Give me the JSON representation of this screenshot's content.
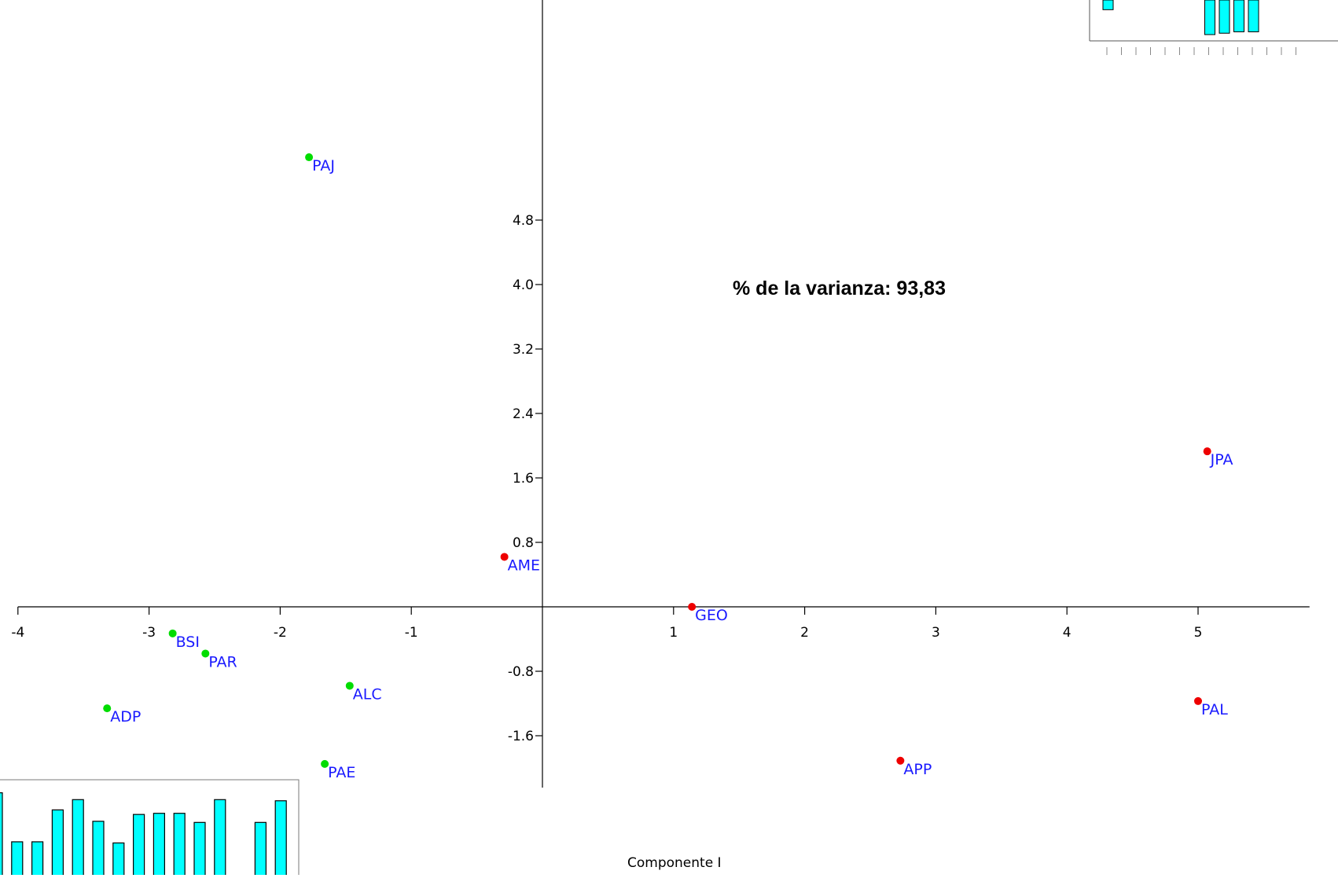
{
  "chart_data": [
    {
      "type": "scatter",
      "title": "",
      "xlabel": "Componente I",
      "ylabel": "",
      "annotation": "% de la varianza: 93,83",
      "xlim": [
        -4,
        5.85
      ],
      "ylim": [
        -2.0,
        6.0
      ],
      "x_ticks": [
        -4,
        -3,
        -2,
        -1,
        1,
        2,
        3,
        4,
        5
      ],
      "y_ticks": [
        4.8,
        4.0,
        3.2,
        2.4,
        1.6,
        0.8,
        -0.8,
        -1.6
      ],
      "grid": false,
      "colors": {
        "axis": "#000000",
        "label": "#1a1aff",
        "group_a": "#00dd00",
        "group_b": "#ee0000"
      },
      "series": [
        {
          "color": "#00dd00",
          "points": [
            {
              "label": "PAJ",
              "x": -1.78,
              "y": 5.58
            },
            {
              "label": "BSI",
              "x": -2.82,
              "y": -0.33
            },
            {
              "label": "PAR",
              "x": -2.57,
              "y": -0.58
            },
            {
              "label": "ALC",
              "x": -1.47,
              "y": -0.98
            },
            {
              "label": "ADP",
              "x": -3.32,
              "y": -1.26
            },
            {
              "label": "PAE",
              "x": -1.66,
              "y": -1.95
            }
          ]
        },
        {
          "color": "#ee0000",
          "points": [
            {
              "label": "AME",
              "x": -0.29,
              "y": 0.62
            },
            {
              "label": "GEO",
              "x": 1.14,
              "y": 0.0
            },
            {
              "label": "JPA",
              "x": 5.07,
              "y": 1.93
            },
            {
              "label": "PAL",
              "x": 5.0,
              "y": -1.17
            },
            {
              "label": "APP",
              "x": 2.73,
              "y": -1.91
            }
          ]
        }
      ]
    },
    {
      "type": "bar",
      "title": "",
      "color": "#00ffff",
      "values": [
        0.72,
        0.29,
        0.29,
        0.57,
        0.66,
        0.47,
        0.28,
        0.53,
        0.54,
        0.54,
        0.46,
        0.66,
        0.0,
        0.46,
        0.65
      ]
    },
    {
      "type": "bar",
      "title": "",
      "color": "#00ffff",
      "values": [
        -0.07,
        0.0,
        0.0,
        0.0,
        0.0,
        0.0,
        0.0,
        -0.25,
        -0.24,
        -0.23,
        -0.23
      ]
    }
  ]
}
